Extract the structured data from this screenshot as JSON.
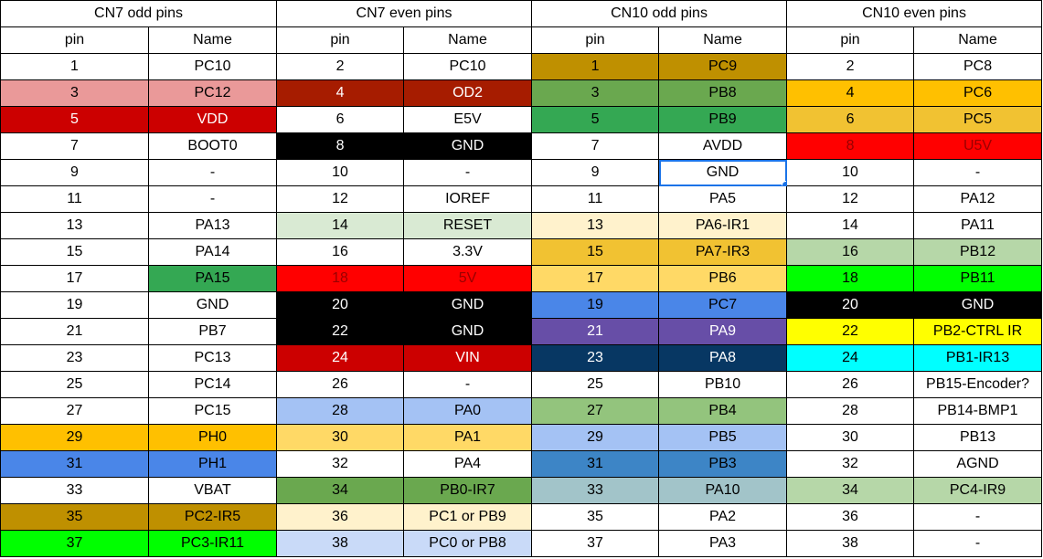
{
  "groups": [
    "CN7 odd pins",
    "CN7 even pins",
    "CN10 odd pins",
    "CN10 even pins"
  ],
  "column_headers": [
    "pin",
    "Name",
    "pin",
    "Name",
    "pin",
    "Name",
    "pin",
    "Name"
  ],
  "selected_cell": {
    "row": 4,
    "group": 2,
    "field": "name"
  },
  "rows": [
    [
      {
        "pin": "1",
        "name": "PC10",
        "bg": "#ffffff",
        "fg": "#000000"
      },
      {
        "pin": "2",
        "name": "PC10",
        "bg": "#ffffff",
        "fg": "#000000"
      },
      {
        "pin": "1",
        "name": "PC9",
        "bg": "#bf9000",
        "fg": "#000000"
      },
      {
        "pin": "2",
        "name": "PC8",
        "bg": "#ffffff",
        "fg": "#000000"
      }
    ],
    [
      {
        "pin": "3",
        "name": "PC12",
        "bg": "#ea9999",
        "fg": "#000000"
      },
      {
        "pin": "4",
        "name": "OD2",
        "bg": "#a61c00",
        "fg": "#ffffff"
      },
      {
        "pin": "3",
        "name": "PB8",
        "bg": "#6aa84f",
        "fg": "#000000"
      },
      {
        "pin": "4",
        "name": "PC6",
        "bg": "#ffc000",
        "fg": "#000000"
      }
    ],
    [
      {
        "pin": "5",
        "name": "VDD",
        "bg": "#cc0000",
        "fg": "#ffffff"
      },
      {
        "pin": "6",
        "name": "E5V",
        "bg": "#ffffff",
        "fg": "#000000"
      },
      {
        "pin": "5",
        "name": "PB9",
        "bg": "#34a853",
        "fg": "#000000"
      },
      {
        "pin": "6",
        "name": "PC5",
        "bg": "#f1c232",
        "fg": "#000000"
      }
    ],
    [
      {
        "pin": "7",
        "name": "BOOT0",
        "bg": "#ffffff",
        "fg": "#000000"
      },
      {
        "pin": "8",
        "name": "GND",
        "bg": "#000000",
        "fg": "#ffffff"
      },
      {
        "pin": "7",
        "name": "AVDD",
        "bg": "#ffffff",
        "fg": "#000000"
      },
      {
        "pin": "8",
        "name": "U5V",
        "bg": "#ff0000",
        "fg": "#990000"
      }
    ],
    [
      {
        "pin": "9",
        "name": "-",
        "bg": "#ffffff",
        "fg": "#000000"
      },
      {
        "pin": "10",
        "name": "-",
        "bg": "#ffffff",
        "fg": "#000000"
      },
      {
        "pin": "9",
        "name": "GND",
        "bg": "#ffffff",
        "fg": "#000000"
      },
      {
        "pin": "10",
        "name": "-",
        "bg": "#ffffff",
        "fg": "#000000"
      }
    ],
    [
      {
        "pin": "11",
        "name": "-",
        "bg": "#ffffff",
        "fg": "#000000"
      },
      {
        "pin": "12",
        "name": "IOREF",
        "bg": "#ffffff",
        "fg": "#000000"
      },
      {
        "pin": "11",
        "name": "PA5",
        "bg": "#ffffff",
        "fg": "#000000"
      },
      {
        "pin": "12",
        "name": "PA12",
        "bg": "#ffffff",
        "fg": "#000000"
      }
    ],
    [
      {
        "pin": "13",
        "name": "PA13",
        "bg": "#ffffff",
        "fg": "#000000"
      },
      {
        "pin": "14",
        "name": "RESET",
        "bg": "#d9ead3",
        "fg": "#000000"
      },
      {
        "pin": "13",
        "name": "PA6-IR1",
        "bg": "#fff2cc",
        "fg": "#000000"
      },
      {
        "pin": "14",
        "name": "PA11",
        "bg": "#ffffff",
        "fg": "#000000"
      }
    ],
    [
      {
        "pin": "15",
        "name": "PA14",
        "bg": "#ffffff",
        "fg": "#000000"
      },
      {
        "pin": "16",
        "name": "3.3V",
        "bg": "#ffffff",
        "fg": "#000000"
      },
      {
        "pin": "15",
        "name": "PA7-IR3",
        "bg": "#f1c232",
        "fg": "#000000"
      },
      {
        "pin": "16",
        "name": "PB12",
        "bg": "#b6d7a8",
        "fg": "#000000"
      }
    ],
    [
      {
        "pin": "17",
        "name": "PA15",
        "bg": "#ffffff",
        "fg": "#000000",
        "name_bg": "#34a853"
      },
      {
        "pin": "18",
        "name": "5V",
        "bg": "#ff0000",
        "fg": "#990000"
      },
      {
        "pin": "17",
        "name": "PB6",
        "bg": "#ffd966",
        "fg": "#000000"
      },
      {
        "pin": "18",
        "name": "PB11",
        "bg": "#00ff00",
        "fg": "#000000"
      }
    ],
    [
      {
        "pin": "19",
        "name": "GND",
        "bg": "#ffffff",
        "fg": "#000000"
      },
      {
        "pin": "20",
        "name": "GND",
        "bg": "#000000",
        "fg": "#ffffff"
      },
      {
        "pin": "19",
        "name": "PC7",
        "bg": "#4a86e8",
        "fg": "#000000"
      },
      {
        "pin": "20",
        "name": "GND",
        "bg": "#000000",
        "fg": "#ffffff"
      }
    ],
    [
      {
        "pin": "21",
        "name": "PB7",
        "bg": "#ffffff",
        "fg": "#000000"
      },
      {
        "pin": "22",
        "name": "GND",
        "bg": "#000000",
        "fg": "#ffffff"
      },
      {
        "pin": "21",
        "name": "PA9",
        "bg": "#674ea7",
        "fg": "#ffffff"
      },
      {
        "pin": "22",
        "name": "PB2-CTRL IR",
        "bg": "#ffff00",
        "fg": "#000000"
      }
    ],
    [
      {
        "pin": "23",
        "name": "PC13",
        "bg": "#ffffff",
        "fg": "#000000"
      },
      {
        "pin": "24",
        "name": "VIN",
        "bg": "#cc0000",
        "fg": "#ffffff"
      },
      {
        "pin": "23",
        "name": "PA8",
        "bg": "#073763",
        "fg": "#ffffff"
      },
      {
        "pin": "24",
        "name": "PB1-IR13",
        "bg": "#00ffff",
        "fg": "#000000"
      }
    ],
    [
      {
        "pin": "25",
        "name": "PC14",
        "bg": "#ffffff",
        "fg": "#000000"
      },
      {
        "pin": "26",
        "name": "-",
        "bg": "#ffffff",
        "fg": "#000000"
      },
      {
        "pin": "25",
        "name": "PB10",
        "bg": "#ffffff",
        "fg": "#000000"
      },
      {
        "pin": "26",
        "name": "PB15-Encoder?",
        "bg": "#ffffff",
        "fg": "#000000"
      }
    ],
    [
      {
        "pin": "27",
        "name": "PC15",
        "bg": "#ffffff",
        "fg": "#000000"
      },
      {
        "pin": "28",
        "name": "PA0",
        "bg": "#a4c2f4",
        "fg": "#000000"
      },
      {
        "pin": "27",
        "name": "PB4",
        "bg": "#93c47d",
        "fg": "#000000"
      },
      {
        "pin": "28",
        "name": "PB14-BMP1",
        "bg": "#ffffff",
        "fg": "#000000"
      }
    ],
    [
      {
        "pin": "29",
        "name": "PH0",
        "bg": "#ffc000",
        "fg": "#000000"
      },
      {
        "pin": "30",
        "name": "PA1",
        "bg": "#ffd966",
        "fg": "#000000"
      },
      {
        "pin": "29",
        "name": "PB5",
        "bg": "#a4c2f4",
        "fg": "#000000"
      },
      {
        "pin": "30",
        "name": "PB13",
        "bg": "#ffffff",
        "fg": "#000000"
      }
    ],
    [
      {
        "pin": "31",
        "name": "PH1",
        "bg": "#4a86e8",
        "fg": "#000000"
      },
      {
        "pin": "32",
        "name": "PA4",
        "bg": "#ffffff",
        "fg": "#000000"
      },
      {
        "pin": "31",
        "name": "PB3",
        "bg": "#3d85c6",
        "fg": "#000000"
      },
      {
        "pin": "32",
        "name": "AGND",
        "bg": "#ffffff",
        "fg": "#000000"
      }
    ],
    [
      {
        "pin": "33",
        "name": "VBAT",
        "bg": "#ffffff",
        "fg": "#000000"
      },
      {
        "pin": "34",
        "name": "PB0-IR7",
        "bg": "#6aa84f",
        "fg": "#000000"
      },
      {
        "pin": "33",
        "name": "PA10",
        "bg": "#a2c4c9",
        "fg": "#000000"
      },
      {
        "pin": "34",
        "name": "PC4-IR9",
        "bg": "#b6d7a8",
        "fg": "#000000"
      }
    ],
    [
      {
        "pin": "35",
        "name": "PC2-IR5",
        "bg": "#bf9000",
        "fg": "#000000"
      },
      {
        "pin": "36",
        "name": "PC1 or PB9",
        "bg": "#fff2cc",
        "fg": "#000000"
      },
      {
        "pin": "35",
        "name": "PA2",
        "bg": "#ffffff",
        "fg": "#000000"
      },
      {
        "pin": "36",
        "name": "-",
        "bg": "#ffffff",
        "fg": "#000000"
      }
    ],
    [
      {
        "pin": "37",
        "name": "PC3-IR11",
        "bg": "#00ff00",
        "fg": "#000000"
      },
      {
        "pin": "38",
        "name": "PC0 or PB8",
        "bg": "#c9daf8",
        "fg": "#000000"
      },
      {
        "pin": "37",
        "name": "PA3",
        "bg": "#ffffff",
        "fg": "#000000"
      },
      {
        "pin": "38",
        "name": "-",
        "bg": "#ffffff",
        "fg": "#000000"
      }
    ]
  ]
}
